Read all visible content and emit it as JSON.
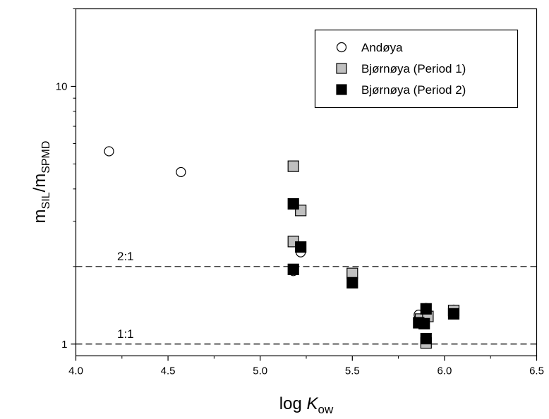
{
  "chart_data": {
    "type": "scatter",
    "x_scale": "linear",
    "y_scale": "log",
    "xlim": [
      4.0,
      6.5
    ],
    "ylim": [
      0.9,
      20
    ],
    "x_ticks": [
      "4.0",
      "4.5",
      "5.0",
      "5.5",
      "6.0",
      "6.5"
    ],
    "y_ticks": [
      "1",
      "10"
    ],
    "xlabel": {
      "prefix": "log ",
      "italic": "K",
      "sub": "ow"
    },
    "ylabel": {
      "m1": "m",
      "s1": "SIL",
      "slash": "/m",
      "s2": "SPMD"
    },
    "grid": false,
    "legend_position": "top-right",
    "series": [
      {
        "name": "Andøya",
        "marker": "circle",
        "fill": "#ffffff",
        "stroke": "#000000",
        "points": [
          [
            4.18,
            5.6
          ],
          [
            4.57,
            4.65
          ],
          [
            5.18,
            1.92
          ],
          [
            5.22,
            2.27
          ],
          [
            5.86,
            1.3
          ],
          [
            5.9,
            1.38
          ],
          [
            6.05,
            1.36
          ]
        ]
      },
      {
        "name": "Bjørnøya (Period 1)",
        "marker": "square",
        "fill": "#c0c0c0",
        "stroke": "#000000",
        "points": [
          [
            5.18,
            4.9
          ],
          [
            5.22,
            3.3
          ],
          [
            5.18,
            2.5
          ],
          [
            5.5,
            1.88
          ],
          [
            5.87,
            1.25
          ],
          [
            5.91,
            1.28
          ],
          [
            6.05,
            1.35
          ],
          [
            5.9,
            1.01
          ]
        ]
      },
      {
        "name": "Bjørnøya (Period 2)",
        "marker": "square",
        "fill": "#000000",
        "stroke": "#000000",
        "points": [
          [
            5.18,
            3.5
          ],
          [
            5.22,
            2.38
          ],
          [
            5.18,
            1.95
          ],
          [
            5.5,
            1.73
          ],
          [
            5.86,
            1.21
          ],
          [
            5.89,
            1.2
          ],
          [
            5.9,
            1.37
          ],
          [
            6.05,
            1.31
          ],
          [
            5.9,
            1.05
          ]
        ]
      }
    ],
    "reference_lines": [
      {
        "label": "2:1",
        "y": 2
      },
      {
        "label": "1:1",
        "y": 1
      }
    ]
  }
}
